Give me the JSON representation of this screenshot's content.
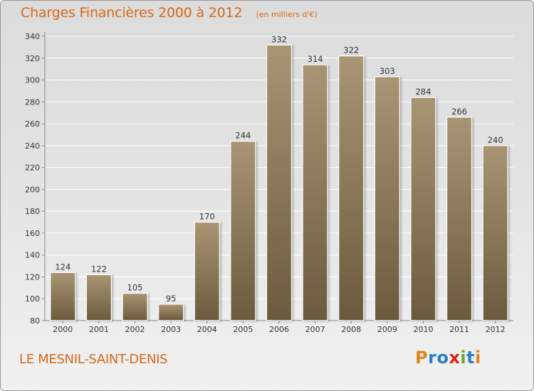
{
  "title": "Charges Financières 2000 à 2012",
  "subtitle": "(en milliers d'€)",
  "commune": "LE MESNIL-SAINT-DENIS",
  "logo": {
    "letters": [
      "P",
      "r",
      "o",
      "x",
      "i",
      "t",
      "i"
    ],
    "colors": [
      "#e0861c",
      "#2a7fc4",
      "#2a7fc4",
      "#d8231b",
      "#6aa82a",
      "#2a7fc4",
      "#e0861c"
    ]
  },
  "colors": {
    "accent": "#d4691a",
    "bar_light": "#a89574",
    "bar_dark": "#6c5a3e"
  },
  "chart_data": {
    "type": "bar",
    "categories": [
      "2000",
      "2001",
      "2002",
      "2003",
      "2004",
      "2005",
      "2006",
      "2007",
      "2008",
      "2009",
      "2010",
      "2011",
      "2012"
    ],
    "values": [
      124,
      122,
      105,
      95,
      170,
      244,
      332,
      314,
      322,
      303,
      284,
      266,
      240
    ],
    "y_ticks": [
      80,
      100,
      120,
      140,
      160,
      180,
      200,
      220,
      240,
      260,
      280,
      300,
      320,
      340
    ],
    "ylim": [
      80,
      340
    ],
    "grid": true,
    "title": "Charges Financières 2000 à 2012",
    "xlabel": "",
    "ylabel": ""
  }
}
